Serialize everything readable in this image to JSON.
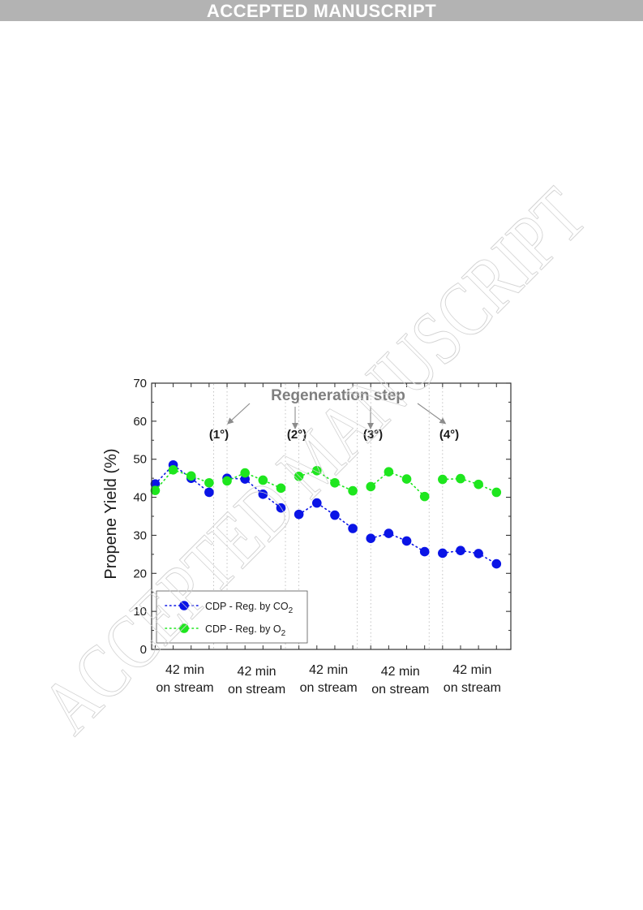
{
  "banner": {
    "text": "ACCEPTED MANUSCRIPT"
  },
  "watermark": {
    "text": "ACCEPTED MANUSCRIPT",
    "color": "#d9d9d9"
  },
  "chart_data": {
    "type": "scatter",
    "ylabel": "Propene Yield (%)",
    "ylim": [
      0,
      70
    ],
    "yticks": [
      0,
      10,
      20,
      30,
      40,
      50,
      60,
      70
    ],
    "x_group_labels": [
      [
        "42 min",
        "on stream"
      ],
      [
        "42 min",
        "on stream"
      ],
      [
        "42 min",
        "on stream"
      ],
      [
        "42 min",
        "on stream"
      ],
      [
        "42 min",
        "on stream"
      ]
    ],
    "annotation": {
      "title": "Regeneration step",
      "labels": [
        "(1°)",
        "(2°)",
        "(3°)",
        "(4°)"
      ]
    },
    "legend_position": "bottom-left",
    "series": [
      {
        "name": "CDP - Reg. by CO2",
        "legend_label": {
          "main": "CDP - Reg. by CO",
          "sub": "2"
        },
        "color": "#0a14e6",
        "values": [
          [
            43.5,
            48.5,
            45.0,
            41.3
          ],
          [
            45.0,
            44.8,
            40.8,
            37.2
          ],
          [
            35.5,
            38.5,
            35.3,
            31.8
          ],
          [
            29.2,
            30.5,
            28.5,
            25.7
          ],
          [
            25.3,
            26.0,
            25.2,
            22.5
          ]
        ]
      },
      {
        "name": "CDP - Reg. by O2",
        "legend_label": {
          "main": "CDP - Reg. by O",
          "sub": "2"
        },
        "color": "#1ee61e",
        "values": [
          [
            41.8,
            47.2,
            45.6,
            43.8
          ],
          [
            44.3,
            46.4,
            44.5,
            42.4
          ],
          [
            45.5,
            47.0,
            43.8,
            41.7
          ],
          [
            42.8,
            46.7,
            44.8,
            40.2
          ],
          [
            44.7,
            44.9,
            43.4,
            41.3
          ]
        ]
      }
    ]
  }
}
